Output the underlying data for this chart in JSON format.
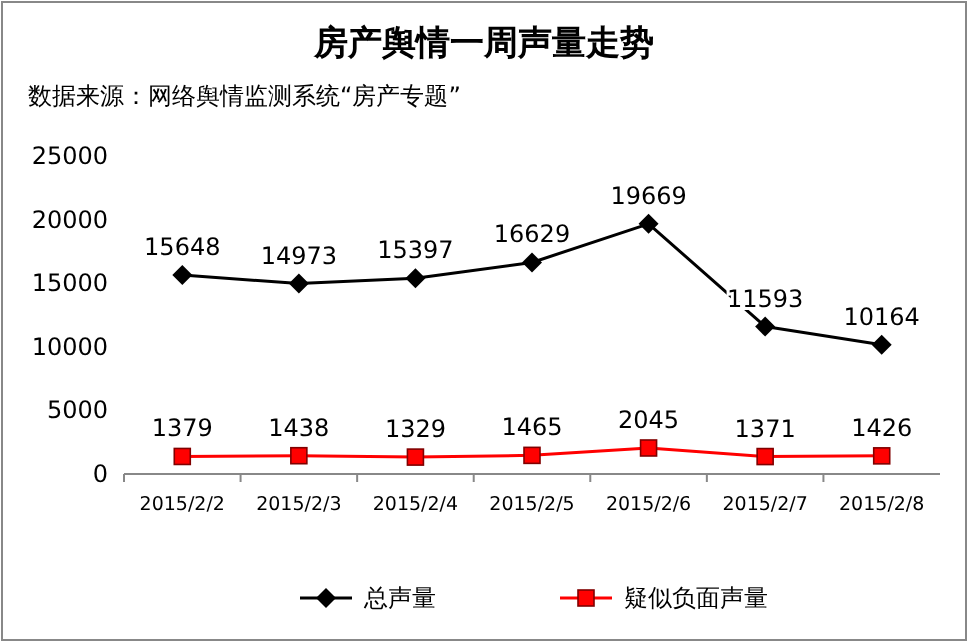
{
  "chart_data": {
    "type": "line",
    "title": "房产舆情一周声量走势",
    "subtitle": "数据来源：网络舆情监测系统“房产专题”",
    "categories": [
      "2015/2/2",
      "2015/2/3",
      "2015/2/4",
      "2015/2/5",
      "2015/2/6",
      "2015/2/7",
      "2015/2/8"
    ],
    "series": [
      {
        "name": "总声量",
        "color": "#000000",
        "marker": "diamond",
        "values": [
          15648,
          14973,
          15397,
          16629,
          19669,
          11593,
          10164
        ]
      },
      {
        "name": "疑似负面声量",
        "color": "#ff0000",
        "marker": "square",
        "values": [
          1379,
          1438,
          1329,
          1465,
          2045,
          1371,
          1426
        ]
      }
    ],
    "ylim": [
      0,
      25000
    ],
    "yticks": [
      0,
      5000,
      10000,
      15000,
      20000,
      25000
    ],
    "data_labels": true,
    "legend": "bottom"
  }
}
